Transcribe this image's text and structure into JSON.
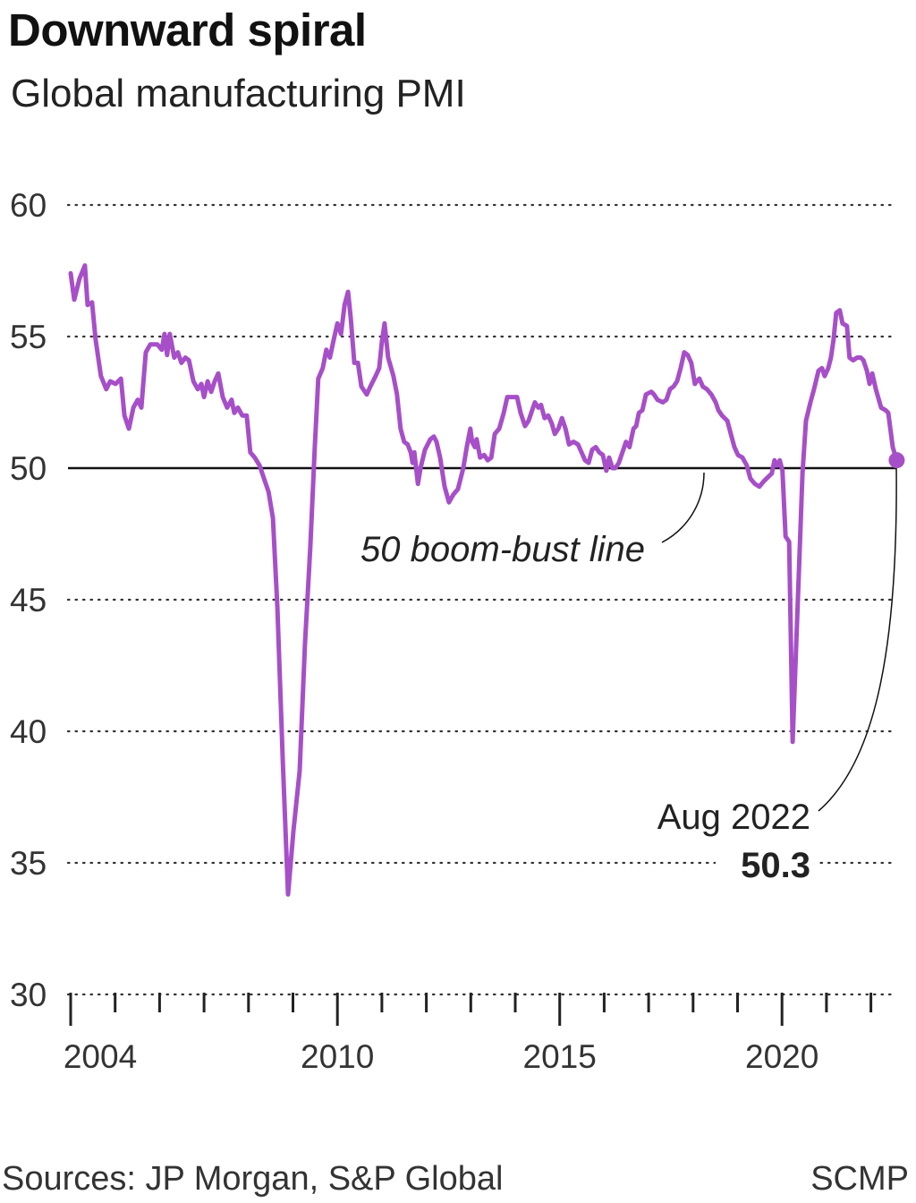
{
  "header": {
    "title": "Downward spiral",
    "subtitle": "Global manufacturing PMI"
  },
  "footer": {
    "sources": "Sources: JP Morgan, S&P Global",
    "brand": "SCMP"
  },
  "colors": {
    "line": "#a64fc8",
    "reference": "#111111",
    "grid": "#333333"
  },
  "chart_data": {
    "type": "line",
    "title": "Downward spiral",
    "subtitle": "Global manufacturing PMI",
    "xlabel": "",
    "ylabel": "",
    "ylim": [
      30,
      60
    ],
    "xlim": [
      2004,
      2022.6
    ],
    "yticks": [
      30,
      35,
      40,
      45,
      50,
      55,
      60
    ],
    "xticks_major": [
      2004,
      2010,
      2015,
      2020
    ],
    "xticks_minor": [
      2004,
      2005,
      2006,
      2007,
      2008,
      2009,
      2010,
      2011,
      2012,
      2013,
      2014,
      2015,
      2016,
      2017,
      2018,
      2019,
      2020,
      2021,
      2022
    ],
    "xtick_labels": [
      "2004",
      "2010",
      "2015",
      "2020"
    ],
    "grid": "horizontal dotted",
    "reference_line": {
      "y": 50,
      "label": "50 boom-bust line"
    },
    "annotation": {
      "date": "Aug 2022",
      "value": "50.3"
    },
    "series": [
      {
        "points": [
          [
            2004.0,
            57.4
          ],
          [
            2004.08,
            56.4
          ],
          [
            2004.2,
            57.2
          ],
          [
            2004.32,
            57.7
          ],
          [
            2004.38,
            56.2
          ],
          [
            2004.48,
            56.3
          ],
          [
            2004.56,
            54.9
          ],
          [
            2004.68,
            53.5
          ],
          [
            2004.8,
            53.0
          ],
          [
            2004.89,
            53.3
          ],
          [
            2005.01,
            53.2
          ],
          [
            2005.13,
            53.4
          ],
          [
            2005.21,
            52.0
          ],
          [
            2005.31,
            51.5
          ],
          [
            2005.41,
            52.3
          ],
          [
            2005.51,
            52.6
          ],
          [
            2005.59,
            52.3
          ],
          [
            2005.69,
            54.4
          ],
          [
            2005.79,
            54.7
          ],
          [
            2005.95,
            54.7
          ],
          [
            2006.05,
            54.5
          ],
          [
            2006.11,
            55.1
          ],
          [
            2006.17,
            54.3
          ],
          [
            2006.23,
            55.1
          ],
          [
            2006.33,
            54.2
          ],
          [
            2006.41,
            54.4
          ],
          [
            2006.49,
            54.0
          ],
          [
            2006.58,
            54.2
          ],
          [
            2006.66,
            54.1
          ],
          [
            2006.76,
            53.3
          ],
          [
            2006.86,
            53.0
          ],
          [
            2006.94,
            53.2
          ],
          [
            2007.0,
            52.7
          ],
          [
            2007.08,
            53.3
          ],
          [
            2007.16,
            52.9
          ],
          [
            2007.24,
            53.3
          ],
          [
            2007.32,
            53.6
          ],
          [
            2007.42,
            52.7
          ],
          [
            2007.52,
            52.3
          ],
          [
            2007.62,
            52.6
          ],
          [
            2007.68,
            52.1
          ],
          [
            2007.76,
            52.3
          ],
          [
            2007.86,
            52.0
          ],
          [
            2007.96,
            52.0
          ],
          [
            2008.04,
            50.6
          ],
          [
            2008.14,
            50.4
          ],
          [
            2008.25,
            50.1
          ],
          [
            2008.35,
            49.6
          ],
          [
            2008.45,
            49.1
          ],
          [
            2008.55,
            48.1
          ],
          [
            2008.65,
            44.7
          ],
          [
            2008.77,
            38.9
          ],
          [
            2008.89,
            33.8
          ],
          [
            2009.01,
            36.2
          ],
          [
            2009.15,
            38.5
          ],
          [
            2009.27,
            43.3
          ],
          [
            2009.39,
            47.0
          ],
          [
            2009.49,
            50.8
          ],
          [
            2009.57,
            53.4
          ],
          [
            2009.67,
            53.8
          ],
          [
            2009.75,
            54.5
          ],
          [
            2009.83,
            54.2
          ],
          [
            2009.92,
            54.9
          ],
          [
            2010.0,
            55.5
          ],
          [
            2010.08,
            55.1
          ],
          [
            2010.16,
            56.2
          ],
          [
            2010.24,
            56.7
          ],
          [
            2010.3,
            55.7
          ],
          [
            2010.38,
            54.0
          ],
          [
            2010.46,
            54.0
          ],
          [
            2010.54,
            53.1
          ],
          [
            2010.66,
            52.8
          ],
          [
            2010.74,
            53.1
          ],
          [
            2010.86,
            53.5
          ],
          [
            2010.94,
            53.8
          ],
          [
            2011.0,
            54.8
          ],
          [
            2011.06,
            55.5
          ],
          [
            2011.14,
            54.2
          ],
          [
            2011.26,
            53.5
          ],
          [
            2011.34,
            52.8
          ],
          [
            2011.42,
            51.5
          ],
          [
            2011.5,
            51.0
          ],
          [
            2011.58,
            50.9
          ],
          [
            2011.65,
            50.6
          ],
          [
            2011.69,
            50.2
          ],
          [
            2011.73,
            50.6
          ],
          [
            2011.81,
            49.4
          ],
          [
            2011.87,
            50.0
          ],
          [
            2011.97,
            50.7
          ],
          [
            2012.09,
            51.1
          ],
          [
            2012.17,
            51.2
          ],
          [
            2012.23,
            51.0
          ],
          [
            2012.31,
            50.4
          ],
          [
            2012.41,
            49.3
          ],
          [
            2012.51,
            48.7
          ],
          [
            2012.61,
            49.0
          ],
          [
            2012.71,
            49.2
          ],
          [
            2012.83,
            50.0
          ],
          [
            2012.91,
            50.8
          ],
          [
            2012.99,
            51.5
          ],
          [
            2013.03,
            51.0
          ],
          [
            2013.09,
            50.8
          ],
          [
            2013.13,
            51.1
          ],
          [
            2013.21,
            50.4
          ],
          [
            2013.3,
            50.5
          ],
          [
            2013.38,
            50.3
          ],
          [
            2013.46,
            50.4
          ],
          [
            2013.54,
            51.3
          ],
          [
            2013.64,
            51.5
          ],
          [
            2013.74,
            52.1
          ],
          [
            2013.82,
            52.7
          ],
          [
            2013.92,
            52.7
          ],
          [
            2014.04,
            52.7
          ],
          [
            2014.12,
            52.1
          ],
          [
            2014.22,
            51.6
          ],
          [
            2014.3,
            51.8
          ],
          [
            2014.36,
            52.1
          ],
          [
            2014.44,
            52.5
          ],
          [
            2014.52,
            52.3
          ],
          [
            2014.58,
            52.4
          ],
          [
            2014.66,
            51.9
          ],
          [
            2014.74,
            52.0
          ],
          [
            2014.82,
            51.7
          ],
          [
            2014.89,
            51.3
          ],
          [
            2014.97,
            51.5
          ],
          [
            2015.05,
            51.9
          ],
          [
            2015.13,
            51.5
          ],
          [
            2015.21,
            50.9
          ],
          [
            2015.31,
            51.0
          ],
          [
            2015.41,
            50.9
          ],
          [
            2015.49,
            50.6
          ],
          [
            2015.57,
            50.3
          ],
          [
            2015.65,
            50.2
          ],
          [
            2015.73,
            50.7
          ],
          [
            2015.81,
            50.8
          ],
          [
            2015.89,
            50.6
          ],
          [
            2015.97,
            50.5
          ],
          [
            2016.05,
            49.9
          ],
          [
            2016.11,
            50.4
          ],
          [
            2016.19,
            50.0
          ],
          [
            2016.25,
            50.0
          ],
          [
            2016.33,
            50.2
          ],
          [
            2016.41,
            50.6
          ],
          [
            2016.49,
            51.0
          ],
          [
            2016.57,
            50.8
          ],
          [
            2016.66,
            51.5
          ],
          [
            2016.72,
            51.6
          ],
          [
            2016.78,
            52.1
          ],
          [
            2016.86,
            52.2
          ],
          [
            2016.94,
            52.8
          ],
          [
            2017.06,
            52.9
          ],
          [
            2017.12,
            52.8
          ],
          [
            2017.2,
            52.6
          ],
          [
            2017.32,
            52.5
          ],
          [
            2017.4,
            52.6
          ],
          [
            2017.48,
            53.0
          ],
          [
            2017.56,
            53.1
          ],
          [
            2017.64,
            53.3
          ],
          [
            2017.72,
            53.8
          ],
          [
            2017.8,
            54.4
          ],
          [
            2017.88,
            54.3
          ],
          [
            2017.96,
            54.0
          ],
          [
            2018.04,
            53.2
          ],
          [
            2018.08,
            53.3
          ],
          [
            2018.14,
            53.4
          ],
          [
            2018.22,
            53.1
          ],
          [
            2018.31,
            53.0
          ],
          [
            2018.41,
            52.8
          ],
          [
            2018.51,
            52.5
          ],
          [
            2018.57,
            52.2
          ],
          [
            2018.65,
            52.0
          ],
          [
            2018.77,
            51.8
          ],
          [
            2018.85,
            51.3
          ],
          [
            2018.93,
            50.8
          ],
          [
            2019.01,
            50.5
          ],
          [
            2019.11,
            50.4
          ],
          [
            2019.21,
            50.1
          ],
          [
            2019.29,
            49.6
          ],
          [
            2019.39,
            49.4
          ],
          [
            2019.49,
            49.3
          ],
          [
            2019.59,
            49.5
          ],
          [
            2019.71,
            49.7
          ],
          [
            2019.77,
            49.8
          ],
          [
            2019.83,
            50.3
          ],
          [
            2019.89,
            50.1
          ],
          [
            2019.95,
            50.3
          ],
          [
            2020.01,
            49.9
          ],
          [
            2020.08,
            47.4
          ],
          [
            2020.16,
            47.2
          ],
          [
            2020.24,
            39.6
          ],
          [
            2020.32,
            43.3
          ],
          [
            2020.4,
            47.0
          ],
          [
            2020.46,
            49.8
          ],
          [
            2020.54,
            51.8
          ],
          [
            2020.64,
            52.5
          ],
          [
            2020.72,
            53.0
          ],
          [
            2020.82,
            53.7
          ],
          [
            2020.9,
            53.8
          ],
          [
            2020.96,
            53.5
          ],
          [
            2021.04,
            53.8
          ],
          [
            2021.1,
            54.2
          ],
          [
            2021.16,
            54.9
          ],
          [
            2021.22,
            55.9
          ],
          [
            2021.3,
            56.0
          ],
          [
            2021.36,
            55.5
          ],
          [
            2021.46,
            55.4
          ],
          [
            2021.52,
            54.2
          ],
          [
            2021.6,
            54.1
          ],
          [
            2021.69,
            54.2
          ],
          [
            2021.77,
            54.2
          ],
          [
            2021.83,
            54.1
          ],
          [
            2021.91,
            53.7
          ],
          [
            2021.97,
            53.2
          ],
          [
            2022.03,
            53.6
          ],
          [
            2022.11,
            53.0
          ],
          [
            2022.23,
            52.3
          ],
          [
            2022.33,
            52.2
          ],
          [
            2022.39,
            52.1
          ],
          [
            2022.49,
            50.8
          ],
          [
            2022.58,
            50.3
          ]
        ]
      }
    ]
  }
}
